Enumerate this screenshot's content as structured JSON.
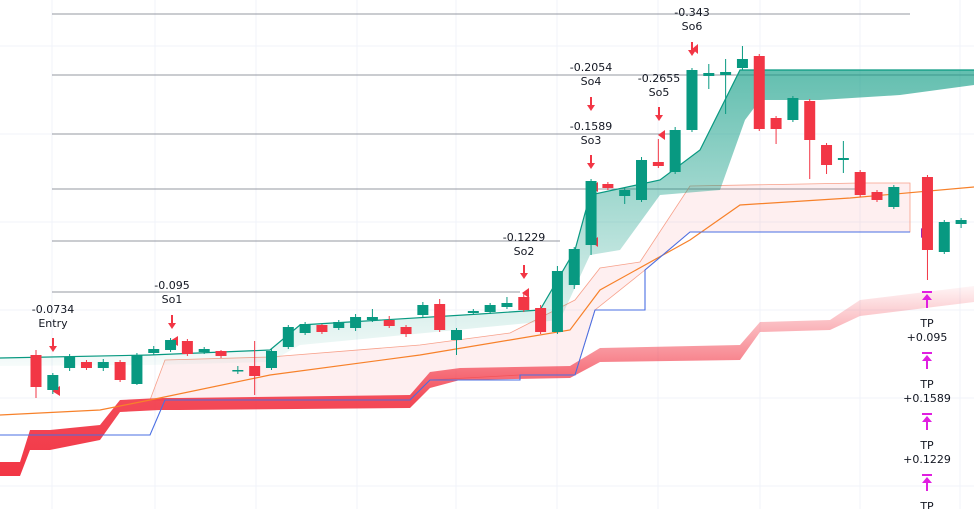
{
  "chart_data": {
    "type": "candlestick",
    "ylim": [
      0,
      50.9
    ],
    "up_color": "#089981",
    "down_color": "#f23645",
    "open": [
      15.4,
      11.9,
      14.1,
      14.7,
      14.1,
      14.7,
      12.5,
      15.6,
      15.9,
      16.8,
      15.7,
      15.8,
      13.8,
      14.3,
      14.1,
      16.2,
      17.6,
      18.4,
      18.1,
      18.1,
      18.9,
      18.9,
      18.2,
      19.4,
      20.5,
      16.9,
      19.6,
      19.7,
      20.2,
      21.2,
      20.1,
      17.7,
      22.4,
      26.4,
      32.5,
      31.3,
      30.9,
      34.7,
      33.7,
      37.9,
      43.3,
      43.4,
      44.1,
      45.3,
      39.1,
      38.9,
      40.8,
      36.4,
      34.9,
      33.7,
      31.7,
      30.2,
      null,
      33.2,
      25.7,
      28.5
    ],
    "high": [
      15.9,
      13.6,
      15.5,
      14.9,
      15.0,
      14.9,
      15.6,
      16.3,
      17.1,
      17.0,
      16.2,
      15.9,
      14.3,
      16.8,
      16.0,
      18.4,
      18.7,
      18.5,
      18.9,
      19.5,
      20.0,
      19.3,
      18.4,
      20.7,
      21.0,
      18.1,
      20.0,
      20.6,
      21.2,
      21.5,
      20.4,
      24.3,
      26.2,
      33.0,
      32.7,
      32.1,
      35.2,
      37.0,
      38.2,
      44.1,
      44.5,
      45.0,
      46.3,
      45.5,
      39.3,
      41.3,
      41.0,
      36.6,
      36.8,
      33.9,
      31.9,
      32.4,
      null,
      33.4,
      28.9,
      29.1
    ],
    "low": [
      11.1,
      11.5,
      13.8,
      13.9,
      13.8,
      12.7,
      12.4,
      15.4,
      15.7,
      15.3,
      15.5,
      15.1,
      13.5,
      11.4,
      13.9,
      16.0,
      17.4,
      17.5,
      17.9,
      17.8,
      18.7,
      18.1,
      17.2,
      19.2,
      17.7,
      15.4,
      19.4,
      19.5,
      20.0,
      19.7,
      17.5,
      17.5,
      22.0,
      25.4,
      31.9,
      30.5,
      30.7,
      34.1,
      33.5,
      37.7,
      42.0,
      39.5,
      43.9,
      37.8,
      36.5,
      38.7,
      33.0,
      33.5,
      33.6,
      31.2,
      30.7,
      30.0,
      null,
      22.9,
      25.5,
      28.1
    ],
    "close": [
      12.2,
      13.4,
      15.2,
      14.1,
      14.7,
      12.9,
      15.4,
      16.0,
      16.9,
      15.5,
      16.0,
      15.3,
      13.9,
      13.3,
      15.8,
      18.2,
      18.5,
      17.7,
      18.7,
      19.2,
      19.2,
      18.3,
      17.5,
      20.4,
      17.9,
      17.9,
      19.8,
      20.4,
      20.6,
      19.9,
      17.7,
      23.8,
      26.0,
      32.8,
      32.1,
      31.9,
      34.9,
      34.3,
      37.9,
      43.9,
      43.6,
      43.7,
      45.0,
      38.0,
      38.0,
      41.1,
      36.9,
      34.4,
      35.1,
      31.4,
      30.9,
      32.2,
      null,
      25.9,
      28.7,
      28.9
    ],
    "annotations": [
      {
        "text": "-0.0734",
        "label": "Entry"
      },
      {
        "text": "-0.095",
        "label": "So1"
      },
      {
        "text": "-0.1229",
        "label": "So2"
      },
      {
        "text": "-0.1589",
        "label": "So3"
      },
      {
        "text": "-0.2054",
        "label": "So4"
      },
      {
        "text": "-0.2655",
        "label": "So5"
      },
      {
        "text": "-0.343",
        "label": "So6"
      }
    ],
    "take_profits": [
      {
        "label": "TP",
        "text": "+0.095"
      },
      {
        "label": "TP",
        "text": "+0.1589"
      },
      {
        "label": "TP",
        "text": "+0.1229"
      },
      {
        "label": "TP"
      }
    ]
  }
}
